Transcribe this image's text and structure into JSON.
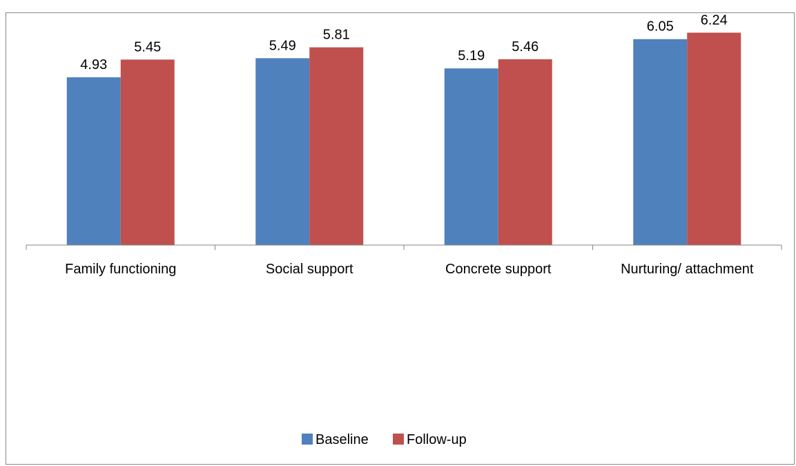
{
  "chart_data": {
    "type": "bar",
    "title": "",
    "categories": [
      "Family functioning",
      "Social support",
      "Concrete support",
      "Nurturing/ attachment"
    ],
    "series": [
      {
        "name": "Baseline",
        "values": [
          4.93,
          5.49,
          5.19,
          6.05
        ],
        "color": "#4F81BD"
      },
      {
        "name": "Follow-up",
        "values": [
          5.45,
          5.81,
          5.46,
          6.24
        ],
        "color": "#C0504D"
      }
    ],
    "ylim": [
      0,
      7.2
    ],
    "xlabel": "",
    "ylabel": "",
    "grid": false,
    "legend_position": "bottom"
  }
}
